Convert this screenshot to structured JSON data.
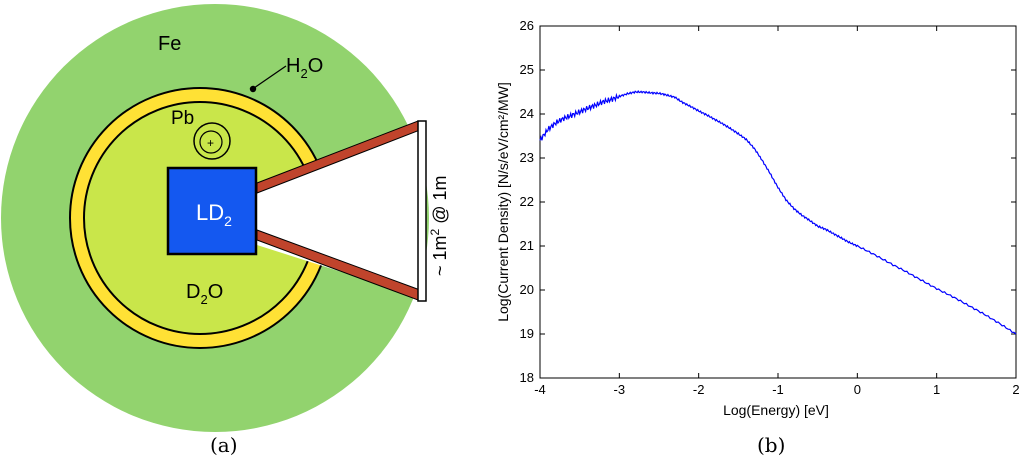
{
  "panel_a": {
    "caption": "(a)",
    "label_fe": "Fe",
    "label_h2o_main": "H",
    "label_h2o_sub": "2",
    "label_h2o_tail": "O",
    "label_pb": "Pb",
    "label_pb_mark": "+",
    "label_ld2_main": "LD",
    "label_ld2_sub": "2",
    "label_d2o_main": "D",
    "label_d2o_sub": "2",
    "label_d2o_tail": "O",
    "label_beam_pre": "~ 1m",
    "label_beam_sup": "2",
    "label_beam_post": " @ 1m",
    "colors": {
      "fe": "#92d36e",
      "h2o": "#ffe135",
      "d2o": "#c9e64a",
      "ld2": "#1458f0",
      "beam": "#c0442c"
    }
  },
  "chart_data": {
    "type": "line",
    "caption": "(b)",
    "xlabel": "Log(Energy) [eV]",
    "ylabel": "Log(Current Density) [N/s/eV/cm²/MW]",
    "xlim": [
      -4,
      2
    ],
    "ylim": [
      18,
      26
    ],
    "xticks": [
      "-4",
      "-3",
      "-2",
      "-1",
      "0",
      "1",
      "2"
    ],
    "yticks": [
      "18",
      "19",
      "20",
      "21",
      "22",
      "23",
      "24",
      "25",
      "26"
    ],
    "grid": false,
    "line_color": "#0000ff",
    "series": [
      {
        "x": [
          -4.0,
          -3.9,
          -3.8,
          -3.7,
          -3.6,
          -3.5,
          -3.4,
          -3.3,
          -3.2,
          -3.1,
          -3.0,
          -2.9,
          -2.8,
          -2.7,
          -2.6,
          -2.5,
          -2.4,
          -2.3,
          -2.2,
          -2.1,
          -2.0,
          -1.9,
          -1.8,
          -1.7,
          -1.6,
          -1.5,
          -1.4,
          -1.3,
          -1.2,
          -1.1,
          -1.0,
          -0.9,
          -0.8,
          -0.7,
          -0.6,
          -0.5,
          -0.4,
          -0.3,
          -0.2,
          -0.1,
          0.0,
          0.2,
          0.4,
          0.6,
          0.8,
          1.0,
          1.2,
          1.4,
          1.6,
          1.8,
          2.0
        ],
        "y": [
          23.4,
          23.65,
          23.8,
          23.9,
          23.97,
          24.05,
          24.13,
          24.2,
          24.28,
          24.33,
          24.4,
          24.46,
          24.5,
          24.5,
          24.48,
          24.47,
          24.43,
          24.38,
          24.26,
          24.17,
          24.07,
          23.98,
          23.88,
          23.78,
          23.67,
          23.55,
          23.42,
          23.22,
          22.95,
          22.65,
          22.33,
          22.05,
          21.85,
          21.7,
          21.58,
          21.45,
          21.38,
          21.28,
          21.18,
          21.08,
          21.0,
          20.82,
          20.62,
          20.43,
          20.23,
          20.03,
          19.85,
          19.65,
          19.45,
          19.23,
          19.0
        ]
      }
    ]
  }
}
